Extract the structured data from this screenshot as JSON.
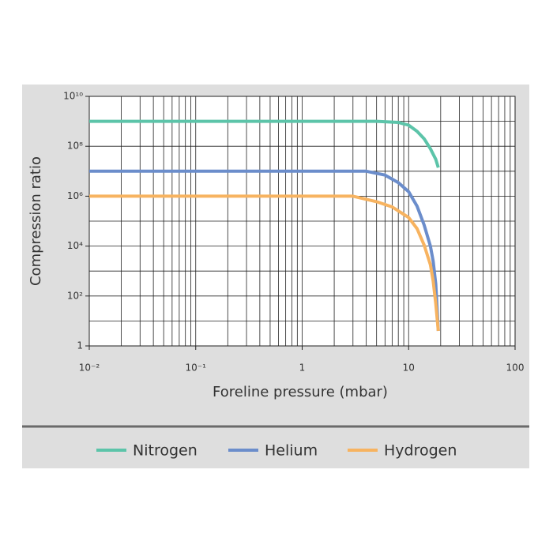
{
  "chart_data": {
    "type": "line",
    "x_label": "Foreline pressure (mbar)",
    "y_label": "Compression ratio",
    "xscale": "log",
    "yscale": "log",
    "grid": true,
    "legend": "bottom",
    "xlim": [
      0.01,
      100
    ],
    "xticks": [
      {
        "value": 0.01,
        "label": "10⁻²"
      },
      {
        "value": 0.1,
        "label": "10⁻¹"
      },
      1,
      10,
      100
    ],
    "ylim": [
      1,
      10000000000
    ],
    "yticks": [
      1,
      {
        "value": 100,
        "label": "10²"
      },
      {
        "value": 10000,
        "label": "10⁴"
      },
      {
        "value": 1000000,
        "label": "10⁶"
      },
      {
        "value": 100000000,
        "label": "10⁸"
      },
      {
        "value": 10000000000,
        "label": "10¹⁰"
      }
    ],
    "series": [
      {
        "name": "Nitrogen",
        "color": "#5cc4a9",
        "x": [
          0.01,
          1,
          5,
          8,
          10,
          12,
          14,
          16,
          18,
          19
        ],
        "values": [
          1000000000,
          1000000000,
          1000000000,
          900000000,
          700000000,
          400000000,
          200000000,
          80000000,
          30000000,
          14000000
        ]
      },
      {
        "name": "Helium",
        "color": "#6b8dcb",
        "x": [
          0.01,
          1,
          4,
          6,
          8,
          10,
          12,
          14,
          16,
          17,
          18,
          19
        ],
        "values": [
          10000000,
          10000000,
          10000000,
          7000000,
          3500000,
          1500000,
          400000,
          70000,
          10000,
          2500,
          300,
          4
        ]
      },
      {
        "name": "Hydrogen",
        "color": "#f7b360",
        "x": [
          0.01,
          1,
          3,
          5,
          7,
          10,
          12,
          14,
          16,
          17,
          18,
          19
        ],
        "values": [
          1000000,
          1000000,
          1000000,
          600000,
          370000,
          140000,
          50000,
          11000,
          1800,
          400,
          50,
          4
        ]
      }
    ]
  }
}
